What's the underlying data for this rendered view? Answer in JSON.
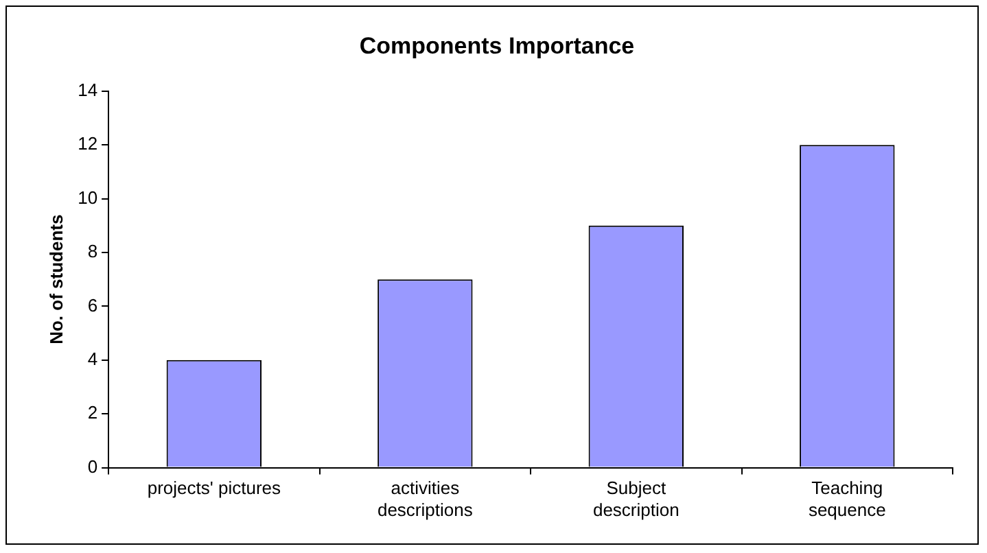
{
  "chart_data": {
    "type": "bar",
    "title": "Components Importance",
    "ylabel": "No. of students",
    "categories": [
      "projects' pictures",
      "activities\ndescriptions",
      "Subject\ndescription",
      "Teaching\nsequence"
    ],
    "values": [
      4,
      7,
      9,
      12
    ],
    "color": "#9999ff",
    "ylim": [
      0,
      14
    ],
    "yticks": [
      0,
      2,
      4,
      6,
      8,
      10,
      12,
      14
    ],
    "grid": false,
    "legend": false
  }
}
